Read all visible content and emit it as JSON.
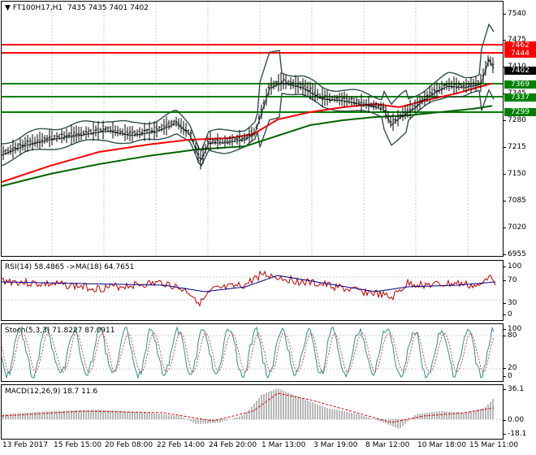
{
  "main": {
    "header": {
      "symbol": "FT100H17,H1",
      "values": "7435 7435 7401 7402"
    },
    "price_ticks": [
      "7540",
      "7475",
      "7410",
      "7345",
      "7280",
      "7215",
      "7150",
      "7085",
      "7020",
      "6955"
    ],
    "price_tags": [
      {
        "text": "7462",
        "color": "#ff0000"
      },
      {
        "text": "7444",
        "color": "#ff0000"
      },
      {
        "text": "7402",
        "color": "#000000"
      },
      {
        "text": "7369",
        "color": "#008000"
      },
      {
        "text": "7337",
        "color": "#008000"
      },
      {
        "text": "7299",
        "color": "#008000"
      }
    ]
  },
  "rsi": {
    "label": "RSI(14) 58.4865  ->MA(18) 64.7651",
    "ticks": [
      "100",
      "70",
      "30",
      "0"
    ]
  },
  "stoch": {
    "label": "Stoch(5,3,3) 71.8227 87.0911",
    "ticks": [
      "100",
      "80",
      "20",
      "0"
    ]
  },
  "macd": {
    "label": "MACD(12,26,9) 18.7 11.6",
    "ticks": [
      "36.1",
      "0.00",
      "-18.1"
    ]
  },
  "time_axis": [
    "13 Feb 2017",
    "15 Feb 15:00",
    "20 Feb 08:00",
    "22 Feb 14:00",
    "24 Feb 20:00",
    "1 Mar 13:00",
    "3 Mar 19:00",
    "8 Mar 12:00",
    "10 Mar 18:00",
    "15 Mar 11:00"
  ],
  "colors": {
    "resistance": "#ff0000",
    "support": "#008000",
    "ma_fast": "#ff0000",
    "ma_slow": "#006400",
    "bands": "#2f4f4f",
    "rsi_line": "#c00000",
    "rsi_ma": "#000080"
  }
}
